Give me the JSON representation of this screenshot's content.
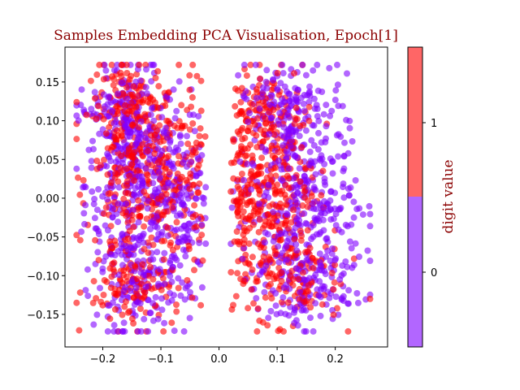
{
  "chart_data": {
    "type": "scatter",
    "title": "Samples Embedding PCA Visualisation, Epoch[1]",
    "title_color": "#8b0000",
    "xlabel": "",
    "ylabel": "",
    "xlim": [
      -0.265,
      0.29
    ],
    "ylim": [
      -0.192,
      0.195
    ],
    "xticks": [
      -0.2,
      -0.1,
      0.0,
      0.1,
      0.2
    ],
    "xtick_labels": [
      "−0.2",
      "−0.1",
      "0.0",
      "0.1",
      "0.2"
    ],
    "yticks": [
      -0.15,
      -0.1,
      -0.05,
      0.0,
      0.05,
      0.1,
      0.15
    ],
    "ytick_labels": [
      "−0.15",
      "−0.10",
      "−0.05",
      "0.00",
      "0.05",
      "0.10",
      "0.15"
    ],
    "grid": false,
    "point_alpha": 0.6,
    "colorbar": {
      "label": "digit value",
      "label_color": "#8b0000",
      "ticks": [
        "0",
        "1"
      ],
      "colors": [
        "#b266ff",
        "#ff6666"
      ]
    },
    "series": [
      {
        "class": "0",
        "color": "#8000ff"
      },
      {
        "class": "1",
        "color": "#ff0000"
      }
    ],
    "clusters": [
      {
        "class": "0",
        "cx": -0.15,
        "cy": 0.02,
        "sx": 0.04,
        "sy": 0.075,
        "n": 360
      },
      {
        "class": "1",
        "cx": -0.15,
        "cy": 0.02,
        "sx": 0.04,
        "sy": 0.075,
        "n": 260
      },
      {
        "class": "0",
        "cx": -0.07,
        "cy": 0.0,
        "sx": 0.035,
        "sy": 0.06,
        "n": 160
      },
      {
        "class": "1",
        "cx": -0.08,
        "cy": 0.03,
        "sx": 0.035,
        "sy": 0.06,
        "n": 140
      },
      {
        "class": "0",
        "cx": -0.17,
        "cy": 0.11,
        "sx": 0.035,
        "sy": 0.025,
        "n": 90
      },
      {
        "class": "1",
        "cx": -0.15,
        "cy": 0.12,
        "sx": 0.035,
        "sy": 0.025,
        "n": 80
      },
      {
        "class": "0",
        "cx": -0.13,
        "cy": -0.12,
        "sx": 0.04,
        "sy": 0.025,
        "n": 100
      },
      {
        "class": "1",
        "cx": -0.14,
        "cy": -0.12,
        "sx": 0.04,
        "sy": 0.025,
        "n": 90
      },
      {
        "class": "0",
        "cx": 0.13,
        "cy": 0.01,
        "sx": 0.045,
        "sy": 0.075,
        "n": 320
      },
      {
        "class": "1",
        "cx": 0.09,
        "cy": 0.02,
        "sx": 0.04,
        "sy": 0.075,
        "n": 300
      },
      {
        "class": "0",
        "cx": 0.1,
        "cy": 0.12,
        "sx": 0.04,
        "sy": 0.025,
        "n": 100
      },
      {
        "class": "1",
        "cx": 0.08,
        "cy": 0.11,
        "sx": 0.04,
        "sy": 0.025,
        "n": 70
      },
      {
        "class": "0",
        "cx": 0.14,
        "cy": -0.12,
        "sx": 0.04,
        "sy": 0.025,
        "n": 100
      },
      {
        "class": "1",
        "cx": 0.12,
        "cy": -0.1,
        "sx": 0.045,
        "sy": 0.03,
        "n": 110
      },
      {
        "class": "0",
        "cx": 0.19,
        "cy": -0.04,
        "sx": 0.03,
        "sy": 0.05,
        "n": 80
      },
      {
        "class": "1",
        "cx": 0.04,
        "cy": 0.0,
        "sx": 0.025,
        "sy": 0.05,
        "n": 60
      }
    ]
  }
}
